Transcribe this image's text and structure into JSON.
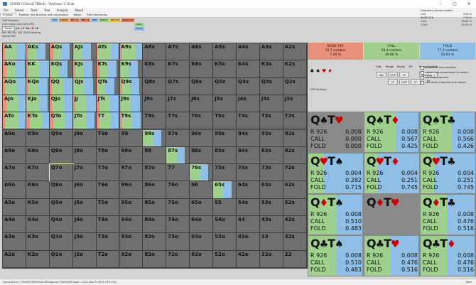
{
  "window": {
    "title": "[SUPEX CCVocuB TBBlok] - PioViewer 1.70.4b"
  },
  "menu": [
    "File",
    "Solver",
    "Tools",
    "Tree",
    "Analysis",
    "About"
  ],
  "tabs": [
    {
      "label": "Browser",
      "active": true
    },
    {
      "label": "Postflop Tree Building and Calculations",
      "active": false
    },
    {
      "label": "Rollup",
      "active": false
    },
    {
      "label": "Tree Information",
      "active": false
    }
  ],
  "left_info": {
    "line1": "OOP Decision",
    "line2": "r:0:c:c:b(t:c:(b3.c)c4:c35)",
    "button": "Scroll",
    "cards": [
      "Q♠",
      "Q♦",
      "8♣",
      "4♥",
      "2♣"
    ],
    "pot": "Pot: 58 (82) 182 (500) Starting Stacks 950"
  },
  "actions": {
    "chips": [
      {
        "label": "Fold",
        "color": "#8fbce0"
      },
      {
        "label": "CHECK",
        "color": "#d9a06e"
      },
      {
        "label": "BET 13",
        "color": "#d98a6e"
      },
      {
        "label": "BET 24",
        "color": "#d98a6e"
      },
      {
        "label": "CHK",
        "color": "#8fbce0"
      },
      {
        "label": "CHECK",
        "color": "#9fcf8f"
      },
      {
        "label": "BET 200",
        "color": "#e0c060"
      },
      {
        "label": "RAISE 926",
        "color": "#e07a60"
      },
      {
        "label": "CALL",
        "color": "#9fcf8f"
      },
      {
        "label": "FOLD",
        "color": "#8fbce0"
      }
    ]
  },
  "frequency": {
    "header": "Frequency across combos",
    "rows": [
      {
        "label": "Line",
        "value": "4.90 %"
      },
      {
        "label": "RAISE 926",
        "value": "7.29 %"
      },
      {
        "label": "CALL",
        "value": "39.80 %"
      },
      {
        "label": "FOLD",
        "value": "52.91 %"
      }
    ]
  },
  "range": {
    "labels": [
      [
        "AA",
        "AKs",
        "AQs",
        "AJs",
        "ATs",
        "A9s",
        "A8s",
        "A7s",
        "A6s",
        "A5s",
        "A4s",
        "A3s",
        "A2s"
      ],
      [
        "AKo",
        "KK",
        "KQs",
        "KJs",
        "KTs",
        "K9s",
        "K8s",
        "K7s",
        "K6s",
        "K5s",
        "K4s",
        "K3s",
        "K2s"
      ],
      [
        "AQo",
        "KQo",
        "QQ",
        "QJs",
        "QTs",
        "Q9s",
        "Q8s",
        "Q7s",
        "Q6s",
        "Q5s",
        "Q4s",
        "Q3s",
        "Q2s"
      ],
      [
        "AJo",
        "KJo",
        "QJo",
        "JJ",
        "JTs",
        "J9s",
        "J8s",
        "J7s",
        "J6s",
        "J5s",
        "J4s",
        "J3s",
        "J2s"
      ],
      [
        "ATo",
        "KTo",
        "QTo",
        "JTo",
        "TT",
        "T9s",
        "T8s",
        "T7s",
        "T6s",
        "T5s",
        "T4s",
        "T3s",
        "T2s"
      ],
      [
        "A9o",
        "K9o",
        "Q9o",
        "J9o",
        "T9o",
        "99",
        "98s",
        "97s",
        "96s",
        "95s",
        "94s",
        "93s",
        "92s"
      ],
      [
        "A8o",
        "K8o",
        "Q8o",
        "J8o",
        "T8o",
        "98o",
        "88",
        "87s",
        "86s",
        "85s",
        "84s",
        "83s",
        "82s"
      ],
      [
        "A7o",
        "K7o",
        "Q7o",
        "J7o",
        "T7o",
        "97o",
        "87o",
        "77",
        "76s",
        "75s",
        "74s",
        "73s",
        "72s"
      ],
      [
        "A6o",
        "K6o",
        "Q6o",
        "J6o",
        "T6o",
        "96o",
        "86o",
        "76o",
        "66",
        "65s",
        "64s",
        "63s",
        "62s"
      ],
      [
        "A5o",
        "K5o",
        "Q5o",
        "J5o",
        "T5o",
        "95o",
        "85o",
        "75o",
        "65o",
        "55",
        "54s",
        "53s",
        "52s"
      ],
      [
        "A4o",
        "K4o",
        "Q4o",
        "J4o",
        "T4o",
        "94o",
        "84o",
        "74o",
        "64o",
        "54o",
        "44",
        "43s",
        "42s"
      ],
      [
        "A3o",
        "K3o",
        "Q3o",
        "J3o",
        "T3o",
        "93o",
        "83o",
        "73o",
        "63o",
        "53o",
        "43o",
        "33",
        "32s"
      ],
      [
        "A2o",
        "K2o",
        "Q2o",
        "J2o",
        "T2o",
        "92o",
        "82o",
        "72o",
        "62o",
        "52o",
        "42o",
        "32o",
        "22"
      ]
    ],
    "selected": "Q7o"
  },
  "summary": [
    {
      "action": "RAISE 926",
      "combos": "10.7 combos",
      "pct": "7.29 %",
      "color": "#e8907a"
    },
    {
      "action": "CALL",
      "combos": "58.4 combos",
      "pct": "39.80 %",
      "color": "#9fd08e"
    },
    {
      "action": "FOLD",
      "combos": "77.2 combos",
      "pct": "52.91 %",
      "color": "#8fbfe6"
    }
  ],
  "suit_icons": [
    "♣",
    "♠",
    "♥",
    "♦"
  ],
  "controls": {
    "labels": [
      "Grid",
      "Range",
      "Equity",
      "EV"
    ],
    "buttons": [
      "bet",
      "OOP",
      "IP",
      "IP",
      "OOP",
      "IP"
    ],
    "strategy_label": "Range Explorer",
    "strategy_value": "Strategy + EV",
    "oop_strategy": "OOP Strategy"
  },
  "checkboxes": [
    "refresh on new selection",
    "square size proportional to weight",
    "normalize squares",
    "row width proportional to weight"
  ],
  "combos": [
    {
      "rank1": "Q",
      "suit1": "♠",
      "rank2": "T",
      "suit2": "♥",
      "raise": "0.008",
      "call": "0.000",
      "fold": "0.000",
      "grey": true
    },
    {
      "rank1": "Q",
      "suit1": "♠",
      "rank2": "T",
      "suit2": "♦",
      "raise": "0.008",
      "call": "0.567",
      "fold": "0.425"
    },
    {
      "rank1": "Q",
      "suit1": "♠",
      "rank2": "T",
      "suit2": "♣",
      "raise": "0.008",
      "call": "0.566",
      "fold": "0.426"
    },
    {
      "rank1": "Q",
      "suit1": "♥",
      "rank2": "T",
      "suit2": "♠",
      "raise": "0.004",
      "call": "0.282",
      "fold": "0.715"
    },
    {
      "rank1": "Q",
      "suit1": "♥",
      "rank2": "T",
      "suit2": "♦",
      "raise": "0.004",
      "call": "0.251",
      "fold": "0.745"
    },
    {
      "rank1": "Q",
      "suit1": "♥",
      "rank2": "T",
      "suit2": "♣",
      "raise": "0.004",
      "call": "0.251",
      "fold": "0.745"
    },
    {
      "rank1": "Q",
      "suit1": "♦",
      "rank2": "T",
      "suit2": "♠",
      "raise": "0.008",
      "call": "0.510",
      "fold": "0.483"
    },
    {
      "rank1": "Q",
      "suit1": "♦",
      "rank2": "T",
      "suit2": "♥",
      "raise": "",
      "call": "",
      "fold": "",
      "grey": true
    },
    {
      "rank1": "Q",
      "suit1": "♦",
      "rank2": "T",
      "suit2": "♣",
      "raise": "0.008",
      "call": "0.476",
      "fold": "0.516"
    },
    {
      "rank1": "Q",
      "suit1": "♣",
      "rank2": "T",
      "suit2": "♠",
      "raise": "0.008",
      "call": "0.510",
      "fold": "0.483"
    },
    {
      "rank1": "Q",
      "suit1": "♣",
      "rank2": "T",
      "suit2": "♥",
      "raise": "0.008",
      "call": "0.476",
      "fold": "0.516"
    },
    {
      "rank1": "Q",
      "suit1": "♣",
      "rank2": "T",
      "suit2": "♦",
      "raise": "0.008",
      "call": "0.476",
      "fold": "0.516"
    }
  ],
  "labels": {
    "raise": "R 926",
    "call": "CALL",
    "fold": "FOLD"
  },
  "status": {
    "text": "Connected to: C:\\PioSOLVER\\PioSOLVER-edge.exe, PioSOLVER edge 1.70.21 (Sep 21 2019, 09:23:45)"
  }
}
